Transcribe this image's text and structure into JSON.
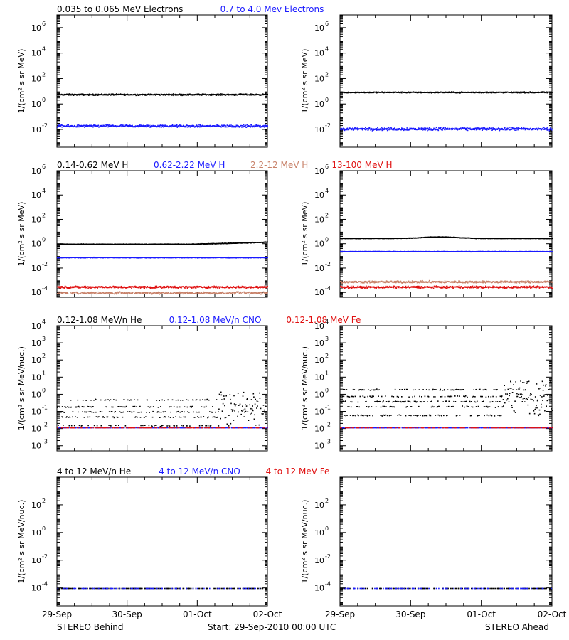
{
  "figure": {
    "footer_left": "STEREO Behind",
    "footer_center": "Start: 29-Sep-2010 00:00 UTC",
    "footer_right": "STEREO Ahead",
    "x_tick_labels": [
      "29-Sep",
      "30-Sep",
      "01-Oct",
      "02-Oct"
    ]
  },
  "rows": [
    {
      "titles": [
        {
          "text": "0.035 to 0.065 MeV Electrons",
          "color": "#000000"
        },
        {
          "text": "0.7 to 4.0 Mev Electrons",
          "color": "#1a1aff"
        }
      ],
      "ylabel": "1/(cm² s sr MeV)",
      "y_ticks": [
        {
          "base": "10",
          "exp": "-2"
        },
        {
          "base": "10",
          "exp": "0"
        },
        {
          "base": "10",
          "exp": "2"
        },
        {
          "base": "10",
          "exp": "4"
        },
        {
          "base": "10",
          "exp": "6"
        }
      ]
    },
    {
      "titles": [
        {
          "text": "0.14-0.62 MeV H",
          "color": "#000000"
        },
        {
          "text": "0.62-2.22 MeV H",
          "color": "#1a1aff"
        },
        {
          "text": "2.2-12 MeV H",
          "color": "#c8826a"
        },
        {
          "text": "13-100 MeV H",
          "color": "#e01010"
        }
      ],
      "ylabel": "1/(cm² s sr MeV)",
      "y_ticks": [
        {
          "base": "10",
          "exp": "-4"
        },
        {
          "base": "10",
          "exp": "-2"
        },
        {
          "base": "10",
          "exp": "0"
        },
        {
          "base": "10",
          "exp": "2"
        },
        {
          "base": "10",
          "exp": "4"
        },
        {
          "base": "10",
          "exp": "6"
        }
      ]
    },
    {
      "titles": [
        {
          "text": "0.12-1.08 MeV/n He",
          "color": "#000000"
        },
        {
          "text": "0.12-1.08 MeV/n CNO",
          "color": "#1a1aff"
        },
        {
          "text": "0.12-1.08 MeV Fe",
          "color": "#e01010"
        }
      ],
      "ylabel": "1/(cm² s sr MeV/nuc.)",
      "y_ticks": [
        {
          "base": "10",
          "exp": "-3"
        },
        {
          "base": "10",
          "exp": "-2"
        },
        {
          "base": "10",
          "exp": "-1"
        },
        {
          "base": "10",
          "exp": "0"
        },
        {
          "base": "10",
          "exp": "1"
        },
        {
          "base": "10",
          "exp": "2"
        },
        {
          "base": "10",
          "exp": "3"
        },
        {
          "base": "10",
          "exp": "4"
        }
      ]
    },
    {
      "titles": [
        {
          "text": "4 to 12 MeV/n He",
          "color": "#000000"
        },
        {
          "text": "4 to 12 MeV/n CNO",
          "color": "#1a1aff"
        },
        {
          "text": "4 to 12 MeV Fe",
          "color": "#e01010"
        }
      ],
      "ylabel": "1/(cm² s sr MeV/nuc.)",
      "y_ticks": [
        {
          "base": "10",
          "exp": "-4"
        },
        {
          "base": "10",
          "exp": "-2"
        },
        {
          "base": "10",
          "exp": "0"
        },
        {
          "base": "10",
          "exp": "2"
        }
      ]
    }
  ],
  "chart_data": [
    {
      "type": "scatter",
      "panel": "behind-electrons",
      "yscale": "log",
      "ylim": [
        0.0004,
        10000000
      ],
      "x_unit": "days since 29-Sep-2010 00:00 UTC",
      "xlim": [
        0,
        3
      ],
      "series": [
        {
          "name": "0.035 to 0.065 MeV Electrons",
          "color": "#000000",
          "level": 6,
          "spread": 0.08,
          "density": 1.0
        },
        {
          "name": "0.7 to 4.0 Mev Electrons",
          "color": "#1a1aff",
          "level": 0.02,
          "spread": 0.14,
          "density": 1.0
        }
      ]
    },
    {
      "type": "scatter",
      "panel": "ahead-electrons",
      "yscale": "log",
      "ylim": [
        0.0004,
        10000000
      ],
      "x_unit": "days since 29-Sep-2010 00:00 UTC",
      "xlim": [
        0,
        3
      ],
      "series": [
        {
          "name": "0.035 to 0.065 MeV Electrons",
          "color": "#000000",
          "level": 9,
          "spread": 0.06,
          "density": 1.0
        },
        {
          "name": "0.7 to 4.0 Mev Electrons",
          "color": "#1a1aff",
          "level": 0.012,
          "spread": 0.16,
          "density": 1.0
        }
      ]
    },
    {
      "type": "scatter",
      "panel": "behind-protons",
      "yscale": "log",
      "ylim": [
        4e-05,
        1000000
      ],
      "x_unit": "days since 29-Sep-2010 00:00 UTC",
      "xlim": [
        0,
        3
      ],
      "series": [
        {
          "name": "0.14-0.62 MeV H",
          "color": "#000000",
          "level": 1.0,
          "spread": 0.04,
          "density": 1.0,
          "rise_end": 1.9
        },
        {
          "name": "0.62-2.22 MeV H",
          "color": "#1a1aff",
          "level": 0.08,
          "spread": 0.04,
          "density": 1.0
        },
        {
          "name": "2.2-12 MeV H",
          "color": "#c8826a",
          "level": 0.0001,
          "spread": 0.12,
          "density": 0.8
        },
        {
          "name": "13-100 MeV H",
          "color": "#e01010",
          "level": 0.0003,
          "spread": 0.12,
          "density": 1.0
        }
      ]
    },
    {
      "type": "scatter",
      "panel": "ahead-protons",
      "yscale": "log",
      "ylim": [
        4e-05,
        1000000
      ],
      "x_unit": "days since 29-Sep-2010 00:00 UTC",
      "xlim": [
        0,
        3
      ],
      "series": [
        {
          "name": "0.14-0.62 MeV H",
          "color": "#000000",
          "level": 3.0,
          "spread": 0.03,
          "density": 1.0,
          "bump": 1.4
        },
        {
          "name": "0.62-2.22 MeV H",
          "color": "#1a1aff",
          "level": 0.25,
          "spread": 0.03,
          "density": 1.0
        },
        {
          "name": "2.2-12 MeV H",
          "color": "#c8826a",
          "level": 0.0008,
          "spread": 0.12,
          "density": 1.0
        },
        {
          "name": "13-100 MeV H",
          "color": "#e01010",
          "level": 0.0003,
          "spread": 0.12,
          "density": 1.0
        }
      ]
    },
    {
      "type": "scatter",
      "panel": "behind-low-heavy-ions",
      "yscale": "log",
      "ylim": [
        0.0005,
        10000
      ],
      "x_unit": "days since 29-Sep-2010 00:00 UTC",
      "xlim": [
        0,
        3
      ],
      "series": [
        {
          "name": "0.12-1.08 MeV/n He",
          "color": "#000000",
          "level": 0.05,
          "spread": 0.35,
          "density": 0.7,
          "quantized": true
        },
        {
          "name": "0.12-1.08 MeV/n CNO",
          "color": "#1a1aff",
          "level": 0.012,
          "spread": 0.0,
          "density": 0.6
        },
        {
          "name": "0.12-1.08 MeV Fe",
          "color": "#e01010",
          "level": 0.012,
          "spread": 0.0,
          "density": 0.3
        }
      ]
    },
    {
      "type": "scatter",
      "panel": "ahead-low-heavy-ions",
      "yscale": "log",
      "ylim": [
        0.0005,
        10000
      ],
      "x_unit": "days since 29-Sep-2010 00:00 UTC",
      "xlim": [
        0,
        3
      ],
      "series": [
        {
          "name": "0.12-1.08 MeV/n He",
          "color": "#000000",
          "level": 0.2,
          "spread": 0.35,
          "density": 0.9,
          "quantized": true
        },
        {
          "name": "0.12-1.08 MeV/n CNO",
          "color": "#1a1aff",
          "level": 0.012,
          "spread": 0.0,
          "density": 0.7
        },
        {
          "name": "0.12-1.08 MeV Fe",
          "color": "#e01010",
          "level": 0.012,
          "spread": 0.0,
          "density": 0.3
        }
      ]
    },
    {
      "type": "scatter",
      "panel": "behind-high-heavy-ions",
      "yscale": "log",
      "ylim": [
        5e-06,
        10000
      ],
      "x_unit": "days since 29-Sep-2010 00:00 UTC",
      "xlim": [
        0,
        3
      ],
      "series": [
        {
          "name": "4 to 12 MeV/n He",
          "color": "#000000",
          "level": 0.0001,
          "spread": 0.0,
          "density": 0.3
        },
        {
          "name": "4 to 12 MeV/n CNO",
          "color": "#1a1aff",
          "level": 0.0001,
          "spread": 0.0,
          "density": 0.15
        },
        {
          "name": "4 to 12 MeV Fe",
          "color": "#e01010",
          "level": 0.0001,
          "spread": 0.0,
          "density": 0.0
        }
      ]
    },
    {
      "type": "scatter",
      "panel": "ahead-high-heavy-ions",
      "yscale": "log",
      "ylim": [
        5e-06,
        10000
      ],
      "x_unit": "days since 29-Sep-2010 00:00 UTC",
      "xlim": [
        0,
        3
      ],
      "series": [
        {
          "name": "4 to 12 MeV/n He",
          "color": "#000000",
          "level": 0.0001,
          "spread": 0.0,
          "density": 0.3
        },
        {
          "name": "4 to 12 MeV/n CNO",
          "color": "#1a1aff",
          "level": 0.0001,
          "spread": 0.0,
          "density": 0.15
        },
        {
          "name": "4 to 12 MeV Fe",
          "color": "#e01010",
          "level": 0.0001,
          "spread": 0.0,
          "density": 0.0
        }
      ]
    }
  ]
}
